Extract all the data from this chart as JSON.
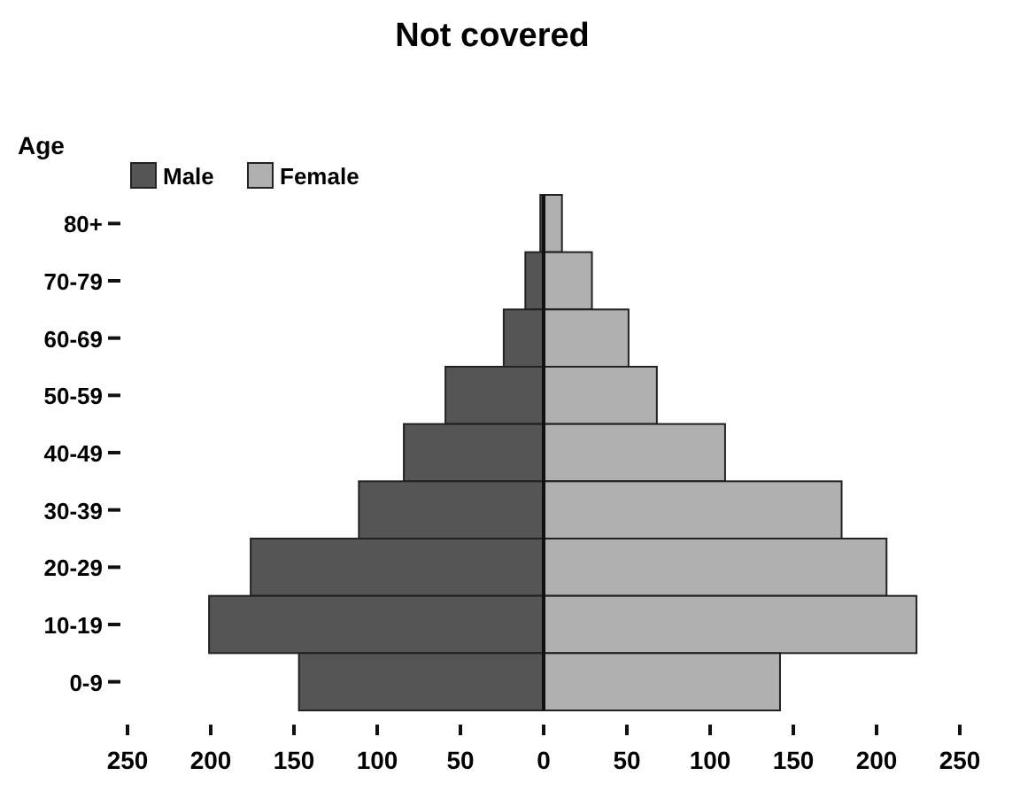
{
  "chart_data": {
    "type": "bar",
    "orientation": "horizontal",
    "stacked": true,
    "title": "Not covered",
    "ylabel": "Age",
    "categories": [
      "80+",
      "70-79",
      "60-69",
      "50-59",
      "40-49",
      "30-39",
      "20-29",
      "10-19",
      "0-9"
    ],
    "series": [
      {
        "name": "Male",
        "color": "#555555",
        "values": [
          -2,
          -11,
          -24,
          -59,
          -84,
          -111,
          -176,
          -201,
          -147
        ]
      },
      {
        "name": "Female",
        "color": "#b0b0b0",
        "values": [
          11,
          29,
          51,
          68,
          109,
          179,
          206,
          224,
          142
        ]
      }
    ],
    "xlim": [
      -250,
      250
    ],
    "xticks": [
      {
        "value": -250,
        "label": "250"
      },
      {
        "value": -200,
        "label": "200"
      },
      {
        "value": -150,
        "label": "150"
      },
      {
        "value": -100,
        "label": "100"
      },
      {
        "value": -50,
        "label": "50"
      },
      0,
      50,
      100,
      150,
      200,
      250
    ],
    "ref_lines": [
      {
        "axis": "x",
        "value": 0
      }
    ],
    "legend": "top left",
    "grid": false
  }
}
